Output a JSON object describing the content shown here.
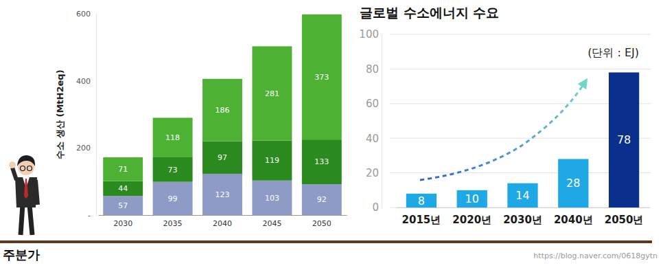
{
  "chart_data": [
    {
      "type": "bar",
      "stacked": true,
      "data_labels": true,
      "grid": false,
      "y_label": "수소 생산 (MtH2eq)",
      "categories": [
        "2030",
        "2035",
        "2040",
        "2045",
        "2050"
      ],
      "series": [
        {
          "color": "#8e9bc6",
          "values": [
            57,
            99,
            123,
            103,
            92
          ]
        },
        {
          "color": "#2b8a1d",
          "values": [
            44,
            73,
            97,
            119,
            133
          ]
        },
        {
          "color": "#4db234",
          "values": [
            71,
            118,
            186,
            281,
            373
          ]
        }
      ],
      "ylim": [
        0,
        600
      ],
      "yticks": [
        {
          "value": 0,
          "label": "-"
        },
        200,
        400,
        600
      ]
    },
    {
      "type": "bar",
      "data_labels": true,
      "grid": true,
      "title": "글로벌 수소에너지 수요",
      "annotations": [
        "(단위 : EJ)"
      ],
      "categories": [
        "2015년",
        "2020년",
        "2030년",
        "2040년",
        "2050년"
      ],
      "values": [
        8,
        10,
        14,
        28,
        78
      ],
      "colors": [
        "#1ea9e6",
        "#1ea9e6",
        "#1ea9e6",
        "#1ea9e6",
        "#0b2f8c"
      ],
      "ylim": [
        0,
        100
      ],
      "yticks": [
        0,
        20,
        40,
        60,
        80,
        100
      ]
    }
  ],
  "page": {
    "brand": "주분가",
    "source": "https://blog.naver.com/0618gytn"
  }
}
